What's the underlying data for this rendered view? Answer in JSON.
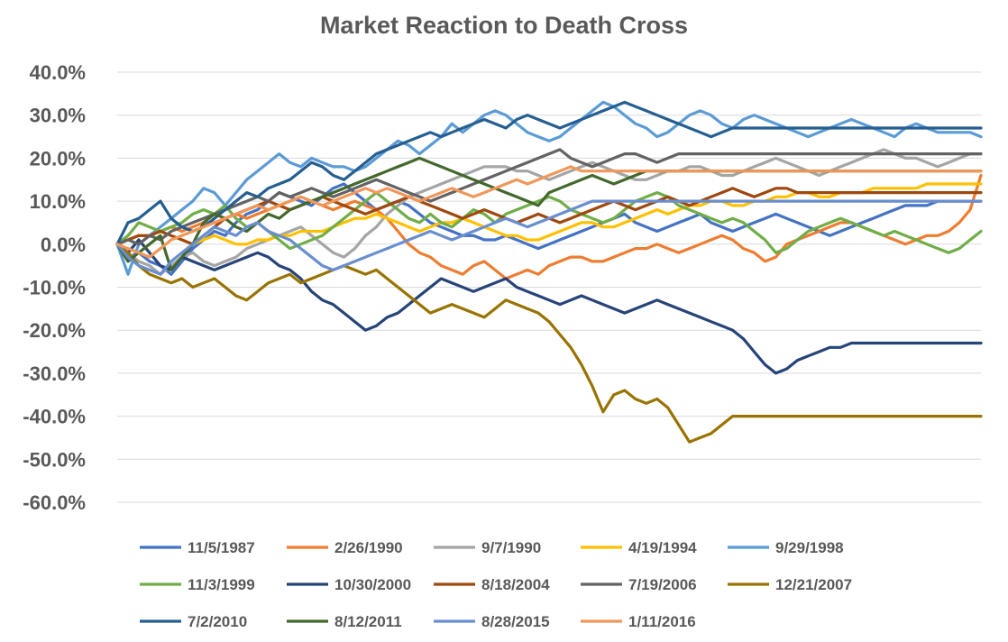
{
  "chart_data": {
    "type": "line",
    "title": "Market Reaction to Death Cross",
    "xlabel": "",
    "ylabel": "",
    "ylim": [
      -60,
      40
    ],
    "yticks": [
      40,
      30,
      20,
      10,
      0,
      -10,
      -20,
      -30,
      -40,
      -50,
      -60
    ],
    "ytick_labels": [
      "40.0%",
      "30.0%",
      "20.0%",
      "10.0%",
      "0.0%",
      "-10.0%",
      "-20.0%",
      "-30.0%",
      "-40.0%",
      "-50.0%",
      "-60.0%"
    ],
    "grid": true,
    "legend_position": "bottom",
    "x": [
      0,
      1,
      2,
      3,
      4,
      5,
      6,
      7,
      8,
      9,
      10,
      11,
      12,
      13,
      14,
      15,
      16,
      17,
      18,
      19,
      20,
      21,
      22,
      23,
      24,
      25,
      26,
      27,
      28,
      29,
      30,
      31,
      32,
      33,
      34,
      35,
      36,
      37,
      38,
      39,
      40,
      41,
      42,
      43,
      44,
      45,
      46,
      47,
      48,
      49,
      50,
      51,
      52,
      53,
      54,
      55,
      56,
      57,
      58,
      59,
      60,
      61,
      62,
      63,
      64,
      65,
      66,
      67,
      68,
      69,
      70,
      71,
      72,
      73,
      74,
      75,
      76,
      77,
      78,
      79,
      80
    ],
    "series": [
      {
        "name": "11/5/1987",
        "color": "#4472c4",
        "values": [
          0,
          -3,
          -2,
          -4,
          -5,
          -7,
          -4,
          -1,
          1,
          3,
          2,
          5,
          7,
          8,
          10,
          12,
          11,
          10,
          9,
          11,
          13,
          14,
          12,
          10,
          8,
          9,
          10,
          9,
          7,
          5,
          4,
          3,
          2,
          2,
          1,
          1,
          2,
          1,
          0,
          -1,
          0,
          1,
          2,
          3,
          4,
          5,
          6,
          7,
          5,
          4,
          3,
          4,
          5,
          6,
          7,
          5,
          4,
          3,
          4,
          5,
          6,
          7,
          6,
          5,
          4,
          3,
          2,
          3,
          4,
          5,
          6,
          7,
          8,
          9,
          9,
          9,
          10,
          10,
          10,
          10,
          10
        ]
      },
      {
        "name": "2/26/1990",
        "color": "#ed7d31",
        "values": [
          0,
          1,
          2,
          2,
          3,
          4,
          3,
          4,
          5,
          5,
          6,
          7,
          6,
          7,
          8,
          9,
          10,
          11,
          10,
          9,
          8,
          9,
          10,
          9,
          8,
          6,
          3,
          0,
          -2,
          -3,
          -5,
          -6,
          -7,
          -5,
          -4,
          -6,
          -8,
          -7,
          -6,
          -7,
          -5,
          -4,
          -3,
          -3,
          -4,
          -4,
          -3,
          -2,
          -1,
          -1,
          0,
          -1,
          -2,
          -1,
          0,
          1,
          2,
          1,
          -1,
          -2,
          -4,
          -3,
          0,
          1,
          2,
          3,
          4,
          5,
          5,
          4,
          3,
          2,
          1,
          0,
          1,
          2,
          2,
          3,
          5,
          8,
          16
        ]
      },
      {
        "name": "9/7/1990",
        "color": "#a5a5a5",
        "values": [
          0,
          -2,
          -4,
          -5,
          -7,
          -5,
          -3,
          -2,
          -4,
          -5,
          -4,
          -3,
          -1,
          0,
          1,
          2,
          3,
          4,
          2,
          0,
          -2,
          -3,
          -1,
          2,
          4,
          7,
          9,
          11,
          12,
          13,
          14,
          15,
          16,
          17,
          18,
          18,
          18,
          17,
          17,
          16,
          15,
          16,
          17,
          18,
          19,
          18,
          17,
          16,
          15,
          15,
          16,
          17,
          17,
          18,
          18,
          17,
          16,
          16,
          17,
          18,
          19,
          20,
          19,
          18,
          17,
          16,
          17,
          18,
          19,
          20,
          21,
          22,
          21,
          20,
          20,
          19,
          18,
          19,
          20,
          21,
          21
        ]
      },
      {
        "name": "4/19/1994",
        "color": "#ffc000",
        "values": [
          0,
          1,
          2,
          2,
          3,
          2,
          1,
          0,
          1,
          2,
          1,
          0,
          0,
          1,
          1,
          2,
          2,
          3,
          3,
          3,
          4,
          5,
          6,
          6,
          7,
          6,
          5,
          4,
          3,
          4,
          5,
          5,
          6,
          5,
          4,
          3,
          2,
          2,
          1,
          1,
          2,
          3,
          4,
          5,
          5,
          4,
          4,
          5,
          6,
          7,
          8,
          7,
          8,
          9,
          9,
          10,
          10,
          9,
          9,
          10,
          10,
          11,
          11,
          12,
          12,
          11,
          11,
          12,
          12,
          12,
          13,
          13,
          13,
          13,
          13,
          14,
          14,
          14,
          14,
          14,
          14
        ]
      },
      {
        "name": "9/29/1998",
        "color": "#5b9bd5",
        "values": [
          0,
          -7,
          0,
          2,
          4,
          6,
          8,
          10,
          13,
          12,
          9,
          12,
          15,
          17,
          19,
          21,
          19,
          18,
          20,
          19,
          18,
          18,
          17,
          18,
          20,
          22,
          24,
          23,
          21,
          23,
          25,
          28,
          26,
          28,
          30,
          31,
          30,
          28,
          26,
          25,
          24,
          25,
          27,
          29,
          31,
          33,
          32,
          30,
          28,
          27,
          25,
          26,
          28,
          30,
          31,
          30,
          28,
          27,
          29,
          30,
          29,
          28,
          27,
          26,
          25,
          26,
          27,
          28,
          29,
          28,
          27,
          26,
          25,
          27,
          28,
          27,
          26,
          26,
          26,
          26,
          25
        ]
      },
      {
        "name": "11/3/1999",
        "color": "#70ad47",
        "values": [
          0,
          2,
          5,
          4,
          3,
          4,
          5,
          7,
          8,
          7,
          9,
          6,
          4,
          5,
          3,
          1,
          -1,
          0,
          1,
          2,
          4,
          6,
          8,
          10,
          12,
          10,
          8,
          6,
          5,
          7,
          5,
          4,
          6,
          8,
          7,
          5,
          7,
          8,
          9,
          10,
          11,
          10,
          8,
          7,
          6,
          5,
          6,
          8,
          10,
          11,
          12,
          11,
          9,
          8,
          7,
          6,
          5,
          6,
          5,
          3,
          1,
          -2,
          -1,
          1,
          3,
          4,
          5,
          6,
          5,
          4,
          3,
          2,
          3,
          2,
          1,
          0,
          -1,
          -2,
          -1,
          1,
          3
        ]
      },
      {
        "name": "10/30/2000",
        "color": "#264478",
        "values": [
          0,
          -2,
          1,
          -2,
          -5,
          -6,
          -3,
          -4,
          -5,
          -6,
          -5,
          -4,
          -3,
          -2,
          -3,
          -5,
          -6,
          -8,
          -11,
          -13,
          -14,
          -16,
          -18,
          -20,
          -19,
          -17,
          -16,
          -14,
          -12,
          -10,
          -8,
          -9,
          -10,
          -11,
          -10,
          -9,
          -8,
          -10,
          -11,
          -12,
          -13,
          -14,
          -13,
          -12,
          -13,
          -14,
          -15,
          -16,
          -15,
          -14,
          -13,
          -14,
          -15,
          -16,
          -17,
          -18,
          -19,
          -20,
          -22,
          -25,
          -28,
          -30,
          -29,
          -27,
          -26,
          -25,
          -24,
          -24,
          -23,
          -23,
          -23,
          -23,
          -23,
          -23,
          -23,
          -23,
          -23,
          -23,
          -23,
          -23,
          -23
        ]
      },
      {
        "name": "8/18/2004",
        "color": "#9e480e",
        "values": [
          0,
          1,
          2,
          2,
          3,
          2,
          1,
          0,
          2,
          4,
          6,
          7,
          8,
          9,
          10,
          9,
          8,
          9,
          10,
          11,
          10,
          9,
          8,
          7,
          8,
          9,
          10,
          11,
          10,
          9,
          8,
          7,
          6,
          7,
          8,
          7,
          6,
          5,
          6,
          7,
          6,
          5,
          6,
          7,
          8,
          9,
          10,
          9,
          8,
          9,
          10,
          11,
          10,
          9,
          10,
          11,
          12,
          13,
          12,
          11,
          12,
          13,
          13,
          12,
          12,
          12,
          12,
          12,
          12,
          12,
          12,
          12,
          12,
          12,
          12,
          12,
          12,
          12,
          12,
          12,
          12
        ]
      },
      {
        "name": "7/19/2006",
        "color": "#636363",
        "values": [
          0,
          1,
          0,
          2,
          1,
          3,
          4,
          5,
          6,
          7,
          8,
          9,
          10,
          11,
          10,
          12,
          11,
          12,
          13,
          12,
          11,
          12,
          13,
          14,
          15,
          14,
          13,
          12,
          11,
          10,
          11,
          12,
          13,
          14,
          15,
          16,
          17,
          18,
          19,
          20,
          21,
          22,
          20,
          19,
          18,
          19,
          20,
          21,
          21,
          20,
          19,
          20,
          21,
          21,
          21,
          21,
          21,
          21,
          21,
          21,
          21,
          21,
          21,
          21,
          21,
          21,
          21,
          21,
          21,
          21,
          21,
          21,
          21,
          21,
          21,
          21,
          21,
          21,
          21,
          21,
          21
        ]
      },
      {
        "name": "12/21/2007",
        "color": "#997300",
        "values": [
          0,
          -2,
          -5,
          -7,
          -8,
          -9,
          -8,
          -10,
          -9,
          -8,
          -10,
          -12,
          -13,
          -11,
          -9,
          -8,
          -7,
          -9,
          -8,
          -7,
          -6,
          -5,
          -6,
          -7,
          -6,
          -8,
          -10,
          -12,
          -14,
          -16,
          -15,
          -14,
          -15,
          -16,
          -17,
          -15,
          -13,
          -14,
          -15,
          -16,
          -18,
          -21,
          -24,
          -28,
          -33,
          -39,
          -35,
          -34,
          -36,
          -37,
          -36,
          -38,
          -42,
          -46,
          -45,
          -44,
          -42,
          -40,
          -40,
          -40,
          -40,
          -40,
          -40,
          -40,
          -40,
          -40,
          -40,
          -40,
          -40,
          -40,
          -40,
          -40,
          -40,
          -40,
          -40,
          -40,
          -40,
          -40,
          -40,
          -40,
          -40
        ]
      },
      {
        "name": "7/2/2010",
        "color": "#255e91",
        "values": [
          0,
          5,
          6,
          8,
          10,
          6,
          4,
          3,
          4,
          6,
          8,
          10,
          12,
          11,
          13,
          14,
          15,
          17,
          19,
          18,
          16,
          15,
          17,
          19,
          21,
          22,
          23,
          24,
          25,
          26,
          25,
          26,
          27,
          28,
          29,
          28,
          27,
          29,
          30,
          29,
          28,
          27,
          28,
          29,
          30,
          31,
          32,
          33,
          32,
          31,
          30,
          29,
          28,
          27,
          26,
          25,
          26,
          27,
          27,
          27,
          27,
          27,
          27,
          27,
          27,
          27,
          27,
          27,
          27,
          27,
          27,
          27,
          27,
          27,
          27,
          27,
          27,
          27,
          27,
          27,
          27
        ]
      },
      {
        "name": "8/12/2011",
        "color": "#43682b",
        "values": [
          0,
          -4,
          -2,
          0,
          2,
          -6,
          -3,
          0,
          5,
          7,
          6,
          4,
          3,
          5,
          7,
          6,
          8,
          9,
          10,
          11,
          12,
          13,
          14,
          15,
          16,
          17,
          18,
          19,
          20,
          19,
          18,
          17,
          16,
          15,
          14,
          13,
          12,
          11,
          10,
          9,
          12,
          13,
          14,
          15,
          16,
          15,
          14,
          15,
          16,
          17,
          17,
          17,
          17,
          17,
          17,
          17,
          17,
          17,
          17,
          17,
          17,
          17,
          17,
          17,
          17,
          17,
          17,
          17,
          17,
          17,
          17,
          17,
          17,
          17,
          17,
          17,
          17,
          17,
          17,
          17,
          17
        ]
      },
      {
        "name": "8/28/2015",
        "color": "#698ed0",
        "values": [
          0,
          -3,
          -5,
          -6,
          -7,
          -4,
          -2,
          0,
          2,
          4,
          3,
          2,
          4,
          5,
          3,
          2,
          1,
          -1,
          -3,
          -5,
          -6,
          -5,
          -4,
          -3,
          -2,
          -1,
          0,
          1,
          2,
          3,
          2,
          1,
          2,
          3,
          4,
          5,
          6,
          5,
          4,
          5,
          6,
          7,
          8,
          9,
          10,
          10,
          10,
          10,
          10,
          10,
          10,
          10,
          10,
          10,
          10,
          10,
          10,
          10,
          10,
          10,
          10,
          10,
          10,
          10,
          10,
          10,
          10,
          10,
          10,
          10,
          10,
          10,
          10,
          10,
          10,
          10,
          10,
          10,
          10,
          10,
          10
        ]
      },
      {
        "name": "1/11/2016",
        "color": "#f1975a",
        "values": [
          0,
          -1,
          -2,
          -3,
          -1,
          1,
          2,
          3,
          4,
          5,
          6,
          7,
          8,
          9,
          8,
          9,
          10,
          11,
          10,
          9,
          10,
          11,
          12,
          13,
          12,
          13,
          12,
          11,
          10,
          11,
          12,
          13,
          12,
          11,
          12,
          13,
          14,
          15,
          14,
          15,
          16,
          17,
          18,
          17,
          17,
          17,
          17,
          17,
          17,
          17,
          17,
          17,
          17,
          17,
          17,
          17,
          17,
          17,
          17,
          17,
          17,
          17,
          17,
          17,
          17,
          17,
          17,
          17,
          17,
          17,
          17,
          17,
          17,
          17,
          17,
          17,
          17,
          17,
          17,
          17,
          17
        ]
      }
    ]
  }
}
